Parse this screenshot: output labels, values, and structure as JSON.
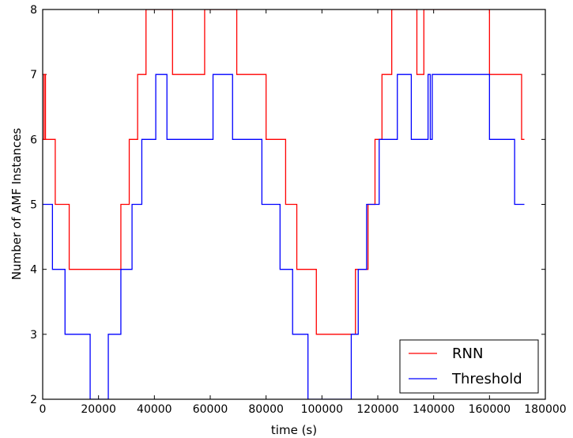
{
  "chart_data": {
    "type": "line",
    "step": true,
    "title": "",
    "xlabel": "time (s)",
    "ylabel": "Number of AMF Instances",
    "xlim": [
      0,
      180000
    ],
    "ylim": [
      2,
      8
    ],
    "xticks": [
      0,
      20000,
      40000,
      60000,
      80000,
      100000,
      120000,
      140000,
      160000,
      180000
    ],
    "yticks": [
      2,
      3,
      4,
      5,
      6,
      7,
      8
    ],
    "grid": false,
    "legend_position": "lower-right",
    "series": [
      {
        "name": "RNN",
        "color": "#ff0000",
        "x": [
          0,
          500,
          1000,
          4500,
          9500,
          28000,
          31000,
          34000,
          37000,
          46500,
          58000,
          69500,
          80000,
          87000,
          91000,
          98000,
          112000,
          116500,
          119000,
          121500,
          125000,
          134000,
          136500,
          160000,
          161000,
          171500,
          172500
        ],
        "y": [
          6,
          7,
          6,
          5,
          4,
          5,
          6,
          7,
          8,
          7,
          8,
          7,
          6,
          5,
          4,
          3,
          4,
          5,
          6,
          7,
          8,
          7,
          8,
          7,
          7,
          6,
          6
        ]
      },
      {
        "name": "Threshold",
        "color": "#0000ff",
        "x": [
          0,
          3500,
          8000,
          17000,
          23500,
          28000,
          32000,
          35500,
          40500,
          44500,
          61000,
          68000,
          78500,
          85000,
          89500,
          95000,
          110500,
          113000,
          116000,
          120500,
          127000,
          132000,
          138000,
          138800,
          139500,
          160000,
          169000,
          172500
        ],
        "y": [
          5,
          4,
          3,
          2,
          3,
          4,
          5,
          6,
          7,
          6,
          7,
          6,
          5,
          4,
          3,
          2,
          3,
          4,
          5,
          6,
          7,
          6,
          7,
          6,
          7,
          6,
          5,
          5
        ]
      }
    ]
  }
}
